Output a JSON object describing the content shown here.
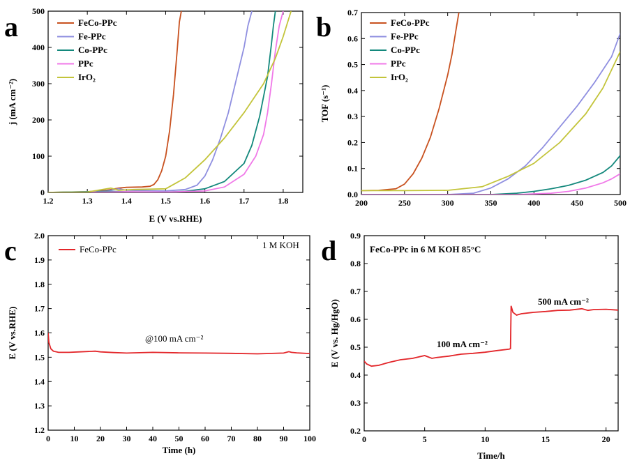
{
  "chart_data": [
    {
      "type": "line",
      "panel": "a",
      "xlabel": "E (V vs.RHE)",
      "ylabel": "j (mA cm⁻²)",
      "xlim": [
        1.2,
        1.85
      ],
      "ylim": [
        0,
        500
      ],
      "xticks": [
        "1.2",
        "1.3",
        "1.4",
        "1.5",
        "1.6",
        "1.7",
        "1.8"
      ],
      "yticks": [
        "0",
        "100",
        "200",
        "300",
        "400",
        "500"
      ],
      "legend": "top-left",
      "series": [
        {
          "name": "FeCo-PPc",
          "color": "#c8511f",
          "x": [
            1.2,
            1.3,
            1.35,
            1.38,
            1.4,
            1.44,
            1.46,
            1.47,
            1.48,
            1.49,
            1.5,
            1.51,
            1.52,
            1.53,
            1.535,
            1.54
          ],
          "y": [
            0,
            2,
            6,
            12,
            14,
            15,
            17,
            22,
            35,
            60,
            100,
            170,
            270,
            400,
            470,
            500
          ]
        },
        {
          "name": "Fe-PPc",
          "color": "#8f8fe0",
          "x": [
            1.2,
            1.3,
            1.35,
            1.38,
            1.4,
            1.5,
            1.55,
            1.58,
            1.6,
            1.62,
            1.64,
            1.66,
            1.68,
            1.7,
            1.71,
            1.72
          ],
          "y": [
            0,
            1,
            4,
            10,
            6,
            4,
            8,
            20,
            45,
            90,
            150,
            220,
            310,
            400,
            460,
            500
          ]
        },
        {
          "name": "Co-PPc",
          "color": "#13887c",
          "x": [
            1.2,
            1.35,
            1.4,
            1.5,
            1.55,
            1.6,
            1.65,
            1.7,
            1.72,
            1.74,
            1.76,
            1.77,
            1.775,
            1.78
          ],
          "y": [
            0,
            3,
            2,
            1,
            3,
            10,
            30,
            80,
            130,
            210,
            320,
            410,
            460,
            500
          ]
        },
        {
          "name": "PPc",
          "color": "#f078e8",
          "x": [
            1.2,
            1.35,
            1.4,
            1.5,
            1.6,
            1.65,
            1.7,
            1.73,
            1.75,
            1.76,
            1.77,
            1.78,
            1.79,
            1.8
          ],
          "y": [
            0,
            1,
            2,
            1,
            4,
            15,
            50,
            100,
            160,
            220,
            300,
            390,
            460,
            500
          ]
        },
        {
          "name": "IrO₂",
          "color": "#c3c43a",
          "x": [
            1.2,
            1.3,
            1.36,
            1.38,
            1.42,
            1.5,
            1.55,
            1.6,
            1.65,
            1.7,
            1.75,
            1.78,
            1.8,
            1.82
          ],
          "y": [
            0,
            1,
            12,
            6,
            8,
            10,
            40,
            90,
            150,
            220,
            300,
            370,
            430,
            500
          ]
        }
      ]
    },
    {
      "type": "line",
      "panel": "b",
      "xlabel": "",
      "ylabel": "TOF (s⁻¹)",
      "xlim": [
        200,
        500
      ],
      "ylim": [
        0,
        0.7
      ],
      "xticks": [
        "200",
        "250",
        "300",
        "350",
        "400",
        "450",
        "500"
      ],
      "yticks": [
        "0.0",
        "0.1",
        "0.2",
        "0.3",
        "0.4",
        "0.5",
        "0.6",
        "0.7"
      ],
      "legend": "top-left",
      "series": [
        {
          "name": "FeCo-PPc",
          "color": "#c8511f",
          "x": [
            200,
            220,
            240,
            250,
            260,
            270,
            280,
            290,
            300,
            305,
            310,
            313
          ],
          "y": [
            0.015,
            0.016,
            0.022,
            0.04,
            0.08,
            0.14,
            0.22,
            0.33,
            0.46,
            0.54,
            0.64,
            0.7
          ]
        },
        {
          "name": "Fe-PPc",
          "color": "#8f8fe0",
          "x": [
            200,
            300,
            330,
            350,
            370,
            390,
            410,
            430,
            450,
            470,
            490,
            500
          ],
          "y": [
            0,
            0,
            0.005,
            0.025,
            0.06,
            0.11,
            0.18,
            0.26,
            0.34,
            0.43,
            0.53,
            0.62
          ]
        },
        {
          "name": "Co-PPc",
          "color": "#13887c",
          "x": [
            200,
            350,
            380,
            400,
            420,
            440,
            460,
            480,
            490,
            500
          ],
          "y": [
            0,
            0,
            0.005,
            0.012,
            0.022,
            0.035,
            0.055,
            0.085,
            0.11,
            0.15
          ]
        },
        {
          "name": "PPc",
          "color": "#f078e8",
          "x": [
            200,
            380,
            420,
            440,
            460,
            480,
            490,
            500
          ],
          "y": [
            0,
            0,
            0.005,
            0.012,
            0.025,
            0.045,
            0.06,
            0.08
          ]
        },
        {
          "name": "IrO₂",
          "color": "#c3c43a",
          "x": [
            200,
            250,
            300,
            340,
            370,
            400,
            430,
            460,
            480,
            500
          ],
          "y": [
            0.015,
            0.015,
            0.016,
            0.03,
            0.07,
            0.12,
            0.2,
            0.31,
            0.41,
            0.55
          ]
        }
      ]
    },
    {
      "type": "line",
      "panel": "c",
      "xlabel": "Time (h)",
      "ylabel": "E (V vs.RHE)",
      "xlim": [
        0,
        100
      ],
      "ylim": [
        1.2,
        2.0
      ],
      "xticks": [
        "0",
        "10",
        "20",
        "30",
        "40",
        "50",
        "60",
        "70",
        "80",
        "90",
        "100"
      ],
      "yticks": [
        "1.2",
        "1.3",
        "1.4",
        "1.5",
        "1.6",
        "1.7",
        "1.8",
        "1.9",
        "2.0"
      ],
      "legend": "top-left",
      "annotations": [
        "1 M KOH",
        "@100 mA cm⁻²"
      ],
      "series": [
        {
          "name": "FeCo-PPc",
          "color": "#e3262a",
          "x": [
            0,
            0.3,
            1,
            2,
            4,
            8,
            12,
            18,
            20,
            25,
            30,
            40,
            50,
            60,
            70,
            80,
            90,
            92,
            93,
            95,
            100
          ],
          "y": [
            1.6,
            1.56,
            1.535,
            1.525,
            1.52,
            1.52,
            1.522,
            1.525,
            1.522,
            1.519,
            1.517,
            1.52,
            1.518,
            1.517,
            1.516,
            1.514,
            1.517,
            1.523,
            1.52,
            1.518,
            1.515
          ]
        }
      ]
    },
    {
      "type": "line",
      "panel": "d",
      "xlabel": "Time/h",
      "ylabel": "E (V vs. Hg/HgO)",
      "xlim": [
        0,
        21
      ],
      "ylim": [
        0.2,
        0.9
      ],
      "xticks": [
        "0",
        "5",
        "10",
        "15",
        "20"
      ],
      "yticks": [
        "0.2",
        "0.3",
        "0.4",
        "0.5",
        "0.6",
        "0.7",
        "0.8",
        "0.9"
      ],
      "title": "FeCo-PPc in 6 M KOH 85°C",
      "annotations": [
        "100 mA cm⁻²",
        "500 mA cm⁻²"
      ],
      "series": [
        {
          "name": "FeCo-PPc",
          "color": "#e3262a",
          "x": [
            0,
            0.2,
            0.6,
            1.2,
            2,
            3,
            4,
            5,
            5.3,
            5.6,
            6,
            7,
            8,
            9,
            10,
            11,
            12,
            12.1,
            12.15,
            12.3,
            12.6,
            13,
            14,
            15,
            16,
            17,
            18,
            18.5,
            19,
            20,
            21
          ],
          "y": [
            0.45,
            0.44,
            0.432,
            0.435,
            0.445,
            0.455,
            0.46,
            0.47,
            0.465,
            0.46,
            0.463,
            0.468,
            0.475,
            0.478,
            0.482,
            0.488,
            0.493,
            0.495,
            0.648,
            0.625,
            0.615,
            0.62,
            0.625,
            0.628,
            0.632,
            0.633,
            0.638,
            0.632,
            0.635,
            0.636,
            0.633
          ]
        }
      ]
    }
  ]
}
